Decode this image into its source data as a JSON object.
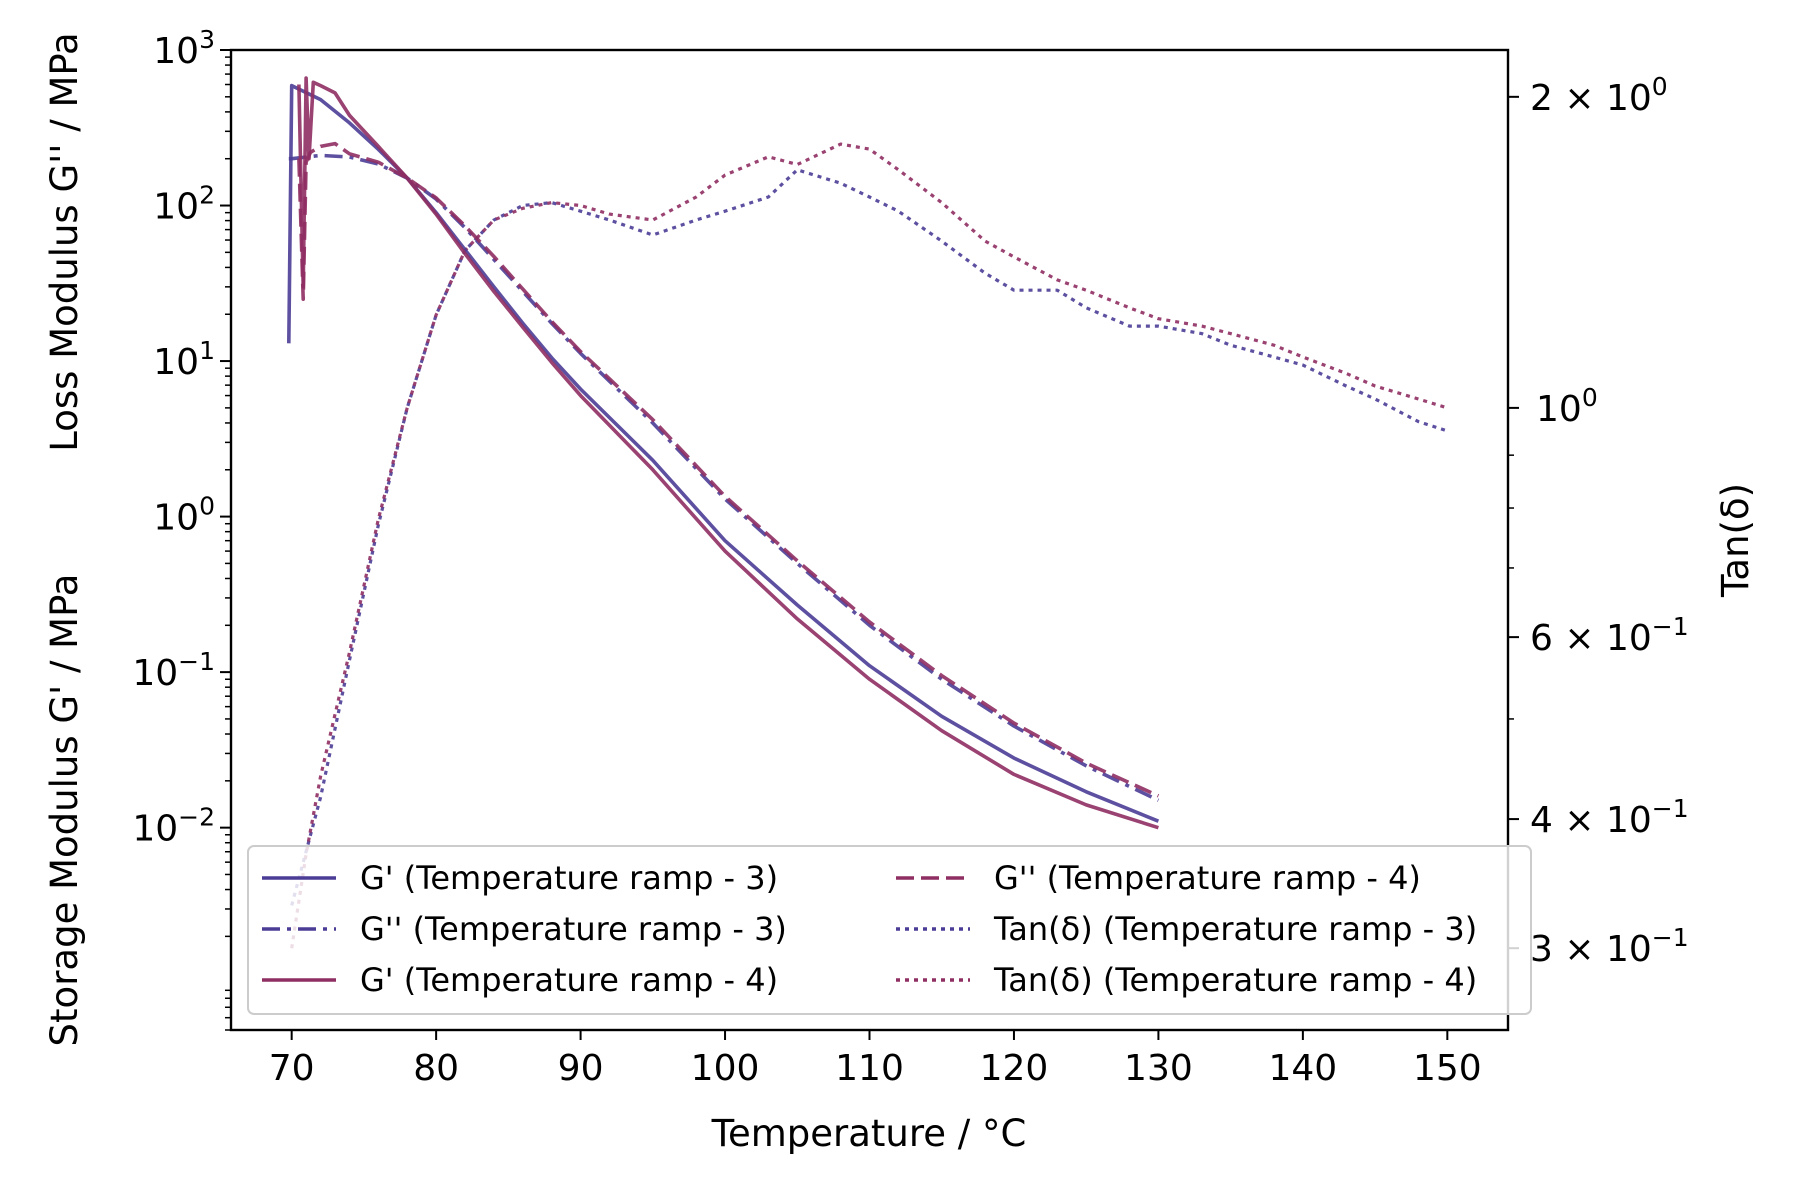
{
  "chart_data": {
    "type": "line",
    "title": "",
    "xlabel": "Temperature / °C",
    "ylabel_top": "Loss Modulus G'' / MPa",
    "ylabel_bottom": "Storage Modulus G' / MPa",
    "y2label": "Tan(δ)",
    "xlim": [
      65.8,
      154.2
    ],
    "ylim": [
      0.0005,
      1000
    ],
    "y_scale": "log",
    "y2lim": [
      0.25,
      2.22
    ],
    "y2_scale": "log",
    "grid": false,
    "legend_location": "lower-center",
    "x_ticks": [
      {
        "value": 70,
        "label": "70"
      },
      {
        "value": 80,
        "label": "80"
      },
      {
        "value": 90,
        "label": "90"
      },
      {
        "value": 100,
        "label": "100"
      },
      {
        "value": 110,
        "label": "110"
      },
      {
        "value": 120,
        "label": "120"
      },
      {
        "value": 130,
        "label": "130"
      },
      {
        "value": 140,
        "label": "140"
      },
      {
        "value": 150,
        "label": "150"
      }
    ],
    "y_ticks": [
      {
        "value": 0.01,
        "base": "10",
        "exp": "−2"
      },
      {
        "value": 0.1,
        "base": "10",
        "exp": "−1"
      },
      {
        "value": 1,
        "base": "10",
        "exp": "0"
      },
      {
        "value": 10,
        "base": "10",
        "exp": "1"
      },
      {
        "value": 100,
        "base": "10",
        "exp": "2"
      },
      {
        "value": 1000,
        "base": "10",
        "exp": "3"
      }
    ],
    "y2_ticks": [
      {
        "value": 2.0,
        "base": "2 × 10",
        "exp": "0"
      },
      {
        "value": 1.0,
        "base": "10",
        "exp": "0"
      },
      {
        "value": 0.6,
        "base": "6 × 10",
        "exp": "−1"
      },
      {
        "value": 0.4,
        "base": "4 × 10",
        "exp": "−1"
      },
      {
        "value": 0.3,
        "base": "3 × 10",
        "exp": "−1"
      }
    ],
    "series": [
      {
        "name": "G' (Temperature ramp - 3)",
        "axis": "left",
        "color": "#4b3d96",
        "dash": "solid",
        "x": [
          69.8,
          70.0,
          72,
          74,
          76,
          78,
          80,
          82,
          84,
          86,
          88,
          90,
          95,
          100,
          105,
          110,
          115,
          120,
          125,
          130
        ],
        "y": [
          13,
          590,
          480,
          340,
          230,
          150,
          90,
          52,
          30,
          17.5,
          10.5,
          6.6,
          2.3,
          0.7,
          0.27,
          0.11,
          0.052,
          0.028,
          0.017,
          0.011
        ]
      },
      {
        "name": "G'' (Temperature ramp - 3)",
        "axis": "left",
        "color": "#4b3d96",
        "dash": "dashdot",
        "x": [
          69.8,
          70.0,
          72,
          74,
          76,
          78,
          80,
          82,
          84,
          86,
          88,
          90,
          95,
          100,
          105,
          110,
          115,
          120,
          125,
          130
        ],
        "y": [
          200,
          200,
          210,
          205,
          185,
          150,
          110,
          72,
          45,
          28,
          17.5,
          11.2,
          4.0,
          1.3,
          0.5,
          0.2,
          0.09,
          0.045,
          0.025,
          0.015
        ]
      },
      {
        "name": "G' (Temperature ramp - 4)",
        "axis": "left",
        "color": "#8f2e62",
        "dash": "solid",
        "x": [
          70.5,
          70.8,
          71.0,
          71.2,
          71.5,
          72,
          73,
          74,
          76,
          78,
          80,
          82,
          84,
          86,
          88,
          90,
          95,
          100,
          105,
          110,
          115,
          120,
          125,
          130
        ],
        "y": [
          600,
          30,
          660,
          200,
          620,
          590,
          530,
          380,
          240,
          150,
          88,
          49,
          28,
          16.5,
          9.8,
          6.0,
          2.0,
          0.6,
          0.22,
          0.09,
          0.042,
          0.022,
          0.014,
          0.01
        ]
      },
      {
        "name": "G'' (Temperature ramp - 4)",
        "axis": "left",
        "color": "#8f2e62",
        "dash": "dashed",
        "x": [
          70.5,
          70.8,
          71.0,
          71.3,
          72,
          73,
          74,
          76,
          78,
          80,
          82,
          84,
          86,
          88,
          90,
          95,
          100,
          105,
          110,
          115,
          120,
          125,
          130
        ],
        "y": [
          200,
          25,
          190,
          220,
          240,
          250,
          215,
          190,
          150,
          112,
          74,
          47,
          29,
          18,
          11.5,
          4.2,
          1.35,
          0.52,
          0.21,
          0.095,
          0.047,
          0.026,
          0.016
        ]
      },
      {
        "name": "Tan(δ) (Temperature ramp - 3)",
        "axis": "right",
        "color": "#4b3d96",
        "dash": "dotted",
        "x": [
          70,
          72,
          74,
          76,
          78,
          80,
          82,
          84,
          86,
          88,
          90,
          92,
          95,
          98,
          100,
          103,
          105,
          108,
          110,
          112,
          115,
          118,
          120,
          123,
          125,
          128,
          130,
          133,
          135,
          138,
          140,
          143,
          145,
          148,
          150
        ],
        "y": [
          0.33,
          0.42,
          0.57,
          0.77,
          1.0,
          1.23,
          1.42,
          1.52,
          1.57,
          1.58,
          1.55,
          1.52,
          1.47,
          1.52,
          1.55,
          1.6,
          1.7,
          1.65,
          1.6,
          1.55,
          1.45,
          1.35,
          1.3,
          1.3,
          1.25,
          1.2,
          1.2,
          1.18,
          1.15,
          1.12,
          1.1,
          1.05,
          1.02,
          0.97,
          0.95
        ]
      },
      {
        "name": "Tan(δ) (Temperature ramp - 4)",
        "axis": "right",
        "color": "#8f2e62",
        "dash": "dotted",
        "x": [
          70,
          71,
          72,
          74,
          76,
          78,
          80,
          82,
          84,
          86,
          88,
          90,
          92,
          95,
          98,
          100,
          103,
          105,
          108,
          110,
          112,
          115,
          118,
          120,
          123,
          125,
          128,
          130,
          133,
          135,
          138,
          140,
          143,
          145,
          148,
          150
        ],
        "y": [
          0.3,
          0.37,
          0.44,
          0.58,
          0.78,
          1.0,
          1.23,
          1.42,
          1.52,
          1.56,
          1.58,
          1.57,
          1.54,
          1.52,
          1.6,
          1.68,
          1.75,
          1.72,
          1.8,
          1.78,
          1.7,
          1.58,
          1.45,
          1.4,
          1.33,
          1.3,
          1.25,
          1.22,
          1.2,
          1.18,
          1.15,
          1.12,
          1.08,
          1.05,
          1.02,
          1.0
        ]
      }
    ]
  }
}
